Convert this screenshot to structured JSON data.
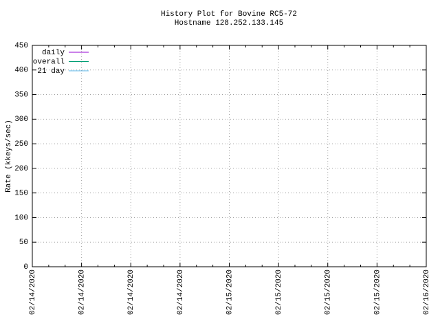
{
  "chart_data": {
    "type": "line",
    "title": "History Plot for Bovine RC5-72",
    "subtitle": "Hostname 128.252.133.145",
    "y_label": "Rate (kkeys/sec)",
    "x_tick_labels": [
      "02/14/2020",
      "02/14/2020",
      "02/14/2020",
      "02/14/2020",
      "02/15/2020",
      "02/15/2020",
      "02/15/2020",
      "02/15/2020",
      "02/16/2020"
    ],
    "series": [
      {
        "name": "daily",
        "color": "#9400d3",
        "values": []
      },
      {
        "name": "overall",
        "color": "#009e73",
        "values": []
      },
      {
        "name": "21 day",
        "color": "#56b4e9",
        "values": []
      }
    ],
    "ylim": [
      0,
      450
    ],
    "yticks": [
      0,
      50,
      100,
      150,
      200,
      250,
      300,
      350,
      400,
      450
    ],
    "grid": true,
    "legend": "upper left"
  }
}
